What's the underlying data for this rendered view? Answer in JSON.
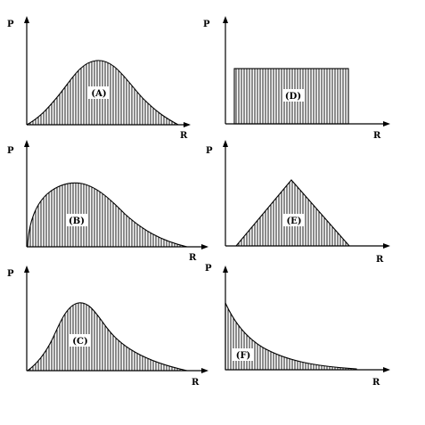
{
  "axis_labels": {
    "y": "P",
    "x": "R"
  },
  "panels": [
    {
      "id": "A",
      "label": "(A)",
      "shape": "bell"
    },
    {
      "id": "D",
      "label": "(D)",
      "shape": "uniform"
    },
    {
      "id": "B",
      "label": "(B)",
      "shape": "right-skewed, broad"
    },
    {
      "id": "E",
      "label": "(E)",
      "shape": "triangle"
    },
    {
      "id": "C",
      "label": "(C)",
      "shape": "right-skewed, peaked"
    },
    {
      "id": "F",
      "label": "(F)",
      "shape": "exponential decay"
    }
  ]
}
